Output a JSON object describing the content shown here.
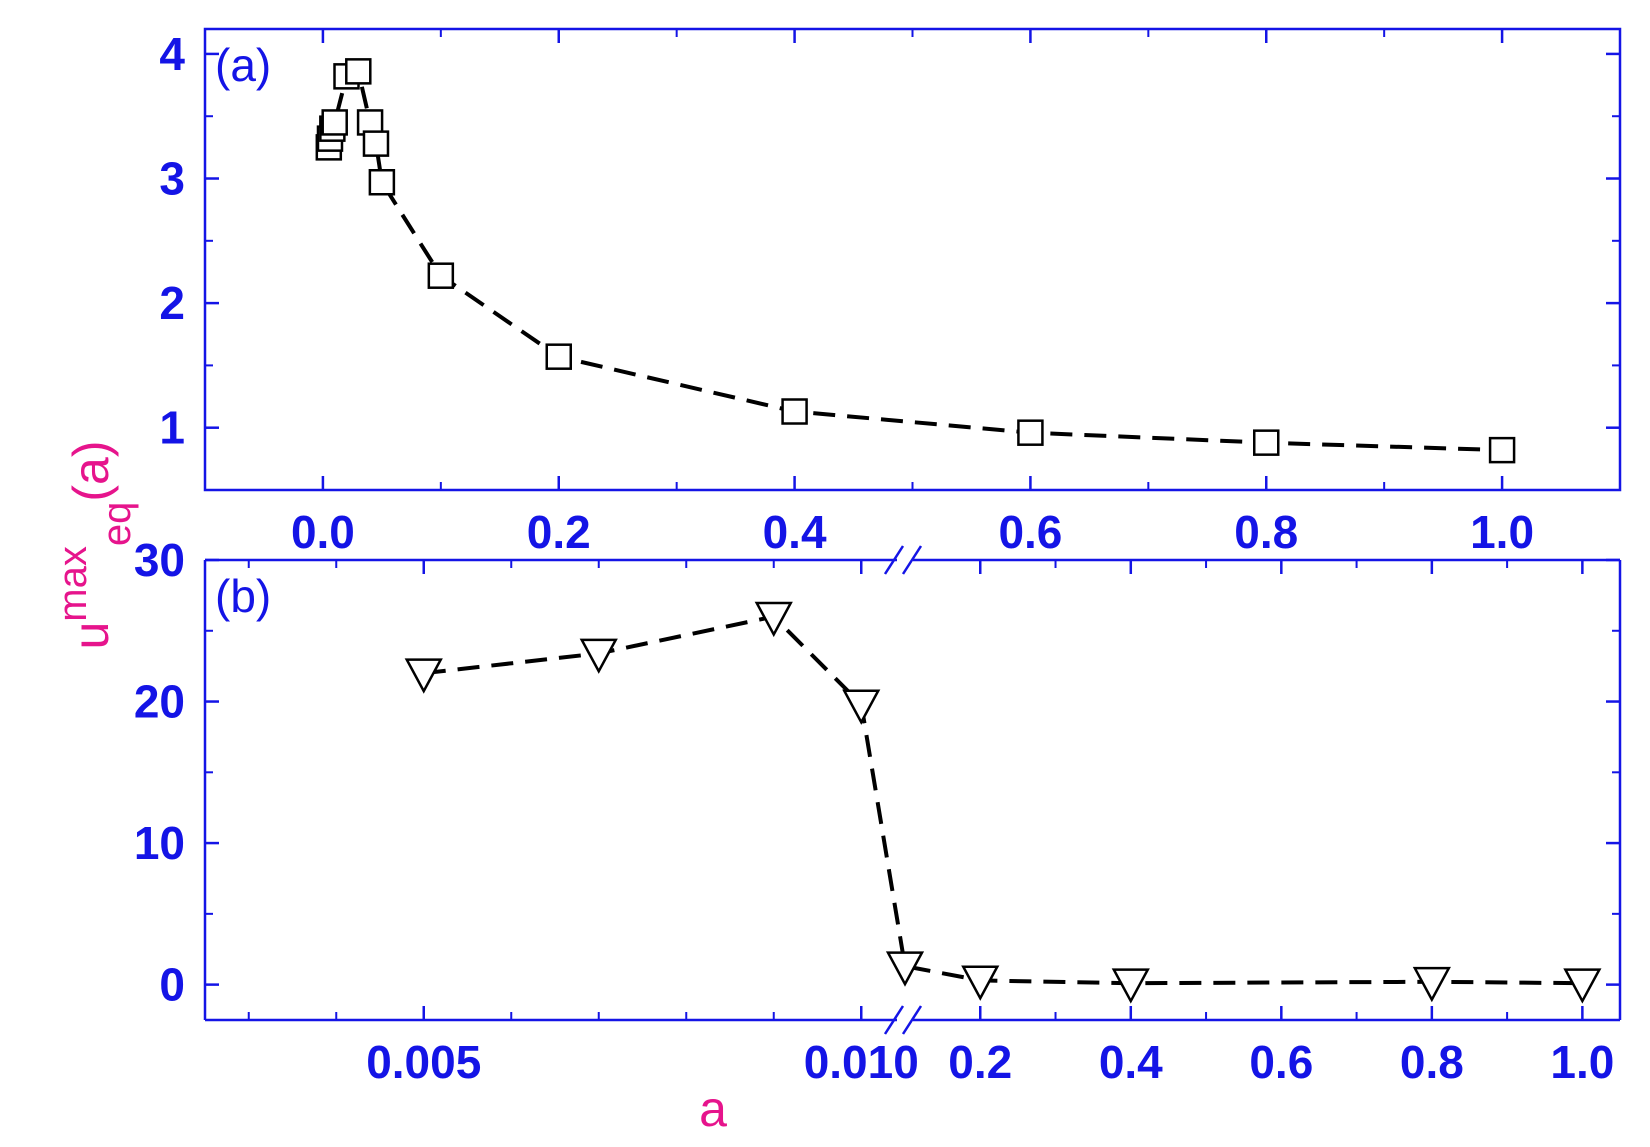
{
  "colors": {
    "axis": "#1414e6",
    "title": "#e6148c",
    "marker": "#000000",
    "line": "#000000"
  },
  "ylabel": {
    "base": "u",
    "sup": "max",
    "sub": "eq",
    "suffix": "(a)"
  },
  "xlabel": "a",
  "chart_data": [
    {
      "type": "scatter",
      "panel_label": "(a)",
      "marker": "square",
      "line_style": "dashed",
      "xlim": [
        -0.1,
        1.1
      ],
      "ylim": [
        0.5,
        4.2
      ],
      "x_ticks": [
        0.0,
        0.2,
        0.4,
        0.6,
        0.8,
        1.0
      ],
      "x_tick_labels": [
        "0.0",
        "0.2",
        "0.4",
        "0.6",
        "0.8",
        "1.0"
      ],
      "y_ticks": [
        1,
        2,
        3,
        4
      ],
      "y_tick_labels": [
        "1",
        "2",
        "3",
        "4"
      ],
      "series": [
        {
          "x": [
            0.005,
            0.006,
            0.008,
            0.01,
            0.02,
            0.03,
            0.04,
            0.045,
            0.05,
            0.1,
            0.2,
            0.4,
            0.6,
            0.8,
            1.0
          ],
          "y": [
            3.25,
            3.32,
            3.4,
            3.45,
            3.82,
            3.86,
            3.45,
            3.28,
            2.97,
            2.22,
            1.57,
            1.13,
            0.96,
            0.88,
            0.82
          ]
        }
      ],
      "grid": false
    },
    {
      "type": "scatter",
      "panel_label": "(b)",
      "marker": "triangle-down",
      "line_style": "dashed",
      "broken_x_axis": true,
      "left_segment": {
        "xlim": [
          0.0025,
          0.0105
        ],
        "x_ticks": [
          0.005,
          0.01
        ],
        "x_tick_labels": [
          "0.005",
          "0.010"
        ]
      },
      "right_segment": {
        "xlim": [
          0.1,
          1.05
        ],
        "x_ticks": [
          0.2,
          0.4,
          0.6,
          0.8,
          1.0
        ],
        "x_tick_labels": [
          "0.2",
          "0.4",
          "0.6",
          "0.8",
          "1.0"
        ]
      },
      "ylim": [
        -2.5,
        30
      ],
      "y_ticks": [
        0,
        10,
        20,
        30
      ],
      "y_tick_labels": [
        "0",
        "10",
        "20",
        "30"
      ],
      "series": [
        {
          "x": [
            0.005,
            0.007,
            0.009,
            0.01,
            0.1,
            0.2,
            0.4,
            0.8,
            1.0
          ],
          "y": [
            22.0,
            23.4,
            26.0,
            19.8,
            1.3,
            0.3,
            0.1,
            0.2,
            0.1
          ]
        }
      ],
      "grid": false
    }
  ]
}
